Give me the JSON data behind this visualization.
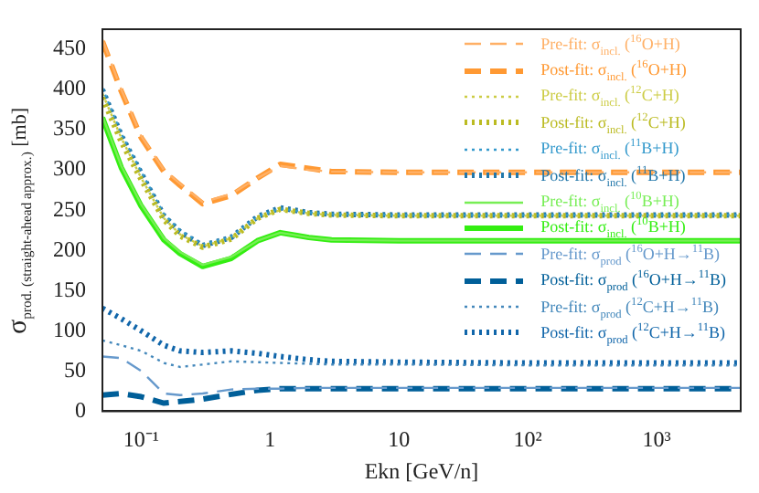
{
  "chart_data": {
    "type": "line",
    "xlabel": "Ekn [GeV/n]",
    "ylabel": "σ$_{prod. (straight-ahead approx.)}$ [mb]",
    "log": "x",
    "xlim": [
      0.05,
      4500
    ],
    "xticks": [
      {
        "value": 0.1,
        "label": "10⁻¹"
      },
      1,
      10,
      {
        "value": 100,
        "label": "10²"
      },
      {
        "value": 1000,
        "label": "10³"
      }
    ],
    "ylim": [
      0,
      475
    ],
    "yticks": [
      0,
      50,
      100,
      150,
      200,
      250,
      300,
      350,
      400,
      450
    ],
    "grid": false,
    "legend": "top right",
    "marker": "none",
    "x": [
      0.05,
      0.07,
      0.1,
      0.15,
      0.2,
      0.3,
      0.5,
      0.8,
      1.2,
      2,
      3,
      10,
      100,
      1000,
      4500
    ],
    "series": [
      {
        "name": "Pre-fit: σ$_{incl.}$ ($^{16}$O+H)",
        "color": "#ffb066",
        "line_style": "dashed",
        "values": [
          462,
          400,
          342,
          300,
          283,
          260,
          270,
          290,
          305,
          300,
          298,
          297,
          297,
          297,
          297
        ]
      },
      {
        "name": "Post-fit: σ$_{incl.}$ ($^{16}$O+H)",
        "color": "#ff9933",
        "line_style": "dashed",
        "values": [
          460,
          398,
          340,
          298,
          281,
          258,
          268,
          290,
          307,
          302,
          298,
          297,
          297,
          297,
          297
        ]
      },
      {
        "name": "Pre-fit: σ$_{incl.}$ ($^{12}$C+H)",
        "color": "#cccc44",
        "line_style": "dotted",
        "values": [
          395,
          340,
          290,
          240,
          220,
          205,
          215,
          240,
          250,
          246,
          244,
          243,
          243,
          243,
          243
        ]
      },
      {
        "name": "Post-fit: σ$_{incl.}$ ($^{12}$C+H)",
        "color": "#bbbb22",
        "line_style": "dotted",
        "values": [
          390,
          335,
          288,
          238,
          218,
          204,
          214,
          240,
          251,
          246,
          244,
          243,
          243,
          243,
          243
        ]
      },
      {
        "name": "Pre-fit: σ$_{incl.}$ ($^{11}$B+H)",
        "color": "#3399cc",
        "line_style": "dotted",
        "values": [
          402,
          345,
          298,
          245,
          225,
          207,
          217,
          242,
          252,
          247,
          245,
          244,
          244,
          244,
          244
        ]
      },
      {
        "name": "Post-fit: σ$_{incl.}$ ($^{11}$B+H)",
        "color": "#2277aa",
        "line_style": "dotted",
        "values": [
          400,
          343,
          296,
          243,
          223,
          206,
          216,
          242,
          253,
          247,
          245,
          244,
          244,
          244,
          244
        ]
      },
      {
        "name": "Pre-fit: σ$_{incl.}$ ($^{10}$B+H)",
        "color": "#77ee55",
        "line_style": "solid",
        "values": [
          367,
          305,
          257,
          215,
          198,
          182,
          192,
          212,
          222,
          216,
          213,
          212,
          212,
          212,
          212
        ]
      },
      {
        "name": "Post-fit: σ$_{incl.}$ ($^{10}$B+H)",
        "color": "#33ee11",
        "line_style": "solid",
        "values": [
          365,
          303,
          255,
          213,
          196,
          180,
          190,
          212,
          222,
          216,
          213,
          212,
          212,
          212,
          212
        ]
      },
      {
        "name": "Pre-fit: σ$_{prod}$ ($^{16}$O+H→$^{11}$B)",
        "color": "#6699cc",
        "line_style": "dashed",
        "values": [
          68,
          66,
          50,
          22,
          20,
          22,
          27,
          28,
          28,
          29,
          29,
          29,
          29,
          29,
          29
        ]
      },
      {
        "name": "Post-fit: σ$_{prod}$ ($^{16}$O+H→$^{11}$B)",
        "color": "#005f99",
        "line_style": "dashed",
        "values": [
          20,
          22,
          18,
          10,
          12,
          15,
          21,
          26,
          28,
          28,
          28,
          28,
          28,
          28,
          28
        ]
      },
      {
        "name": "Pre-fit: σ$_{prod}$ ($^{12}$C+H→$^{11}$B)",
        "color": "#4488bb",
        "line_style": "dotted",
        "values": [
          88,
          82,
          75,
          60,
          55,
          58,
          62,
          61,
          60,
          59,
          58,
          58,
          57,
          57,
          57
        ]
      },
      {
        "name": "Post-fit: σ$_{prod}$ ($^{12}$C+H→$^{11}$B)",
        "color": "#1166aa",
        "line_style": "dotted",
        "values": [
          128,
          115,
          100,
          82,
          75,
          73,
          75,
          72,
          68,
          64,
          62,
          61,
          60,
          60,
          60
        ]
      }
    ]
  }
}
